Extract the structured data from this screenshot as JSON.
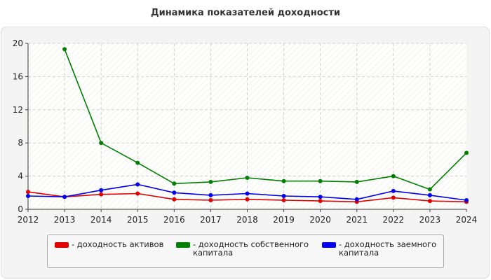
{
  "chart_data": {
    "type": "line",
    "title": "Динамика показателей доходности",
    "xlabel": "",
    "ylabel": "",
    "x": [
      "2012",
      "2013",
      "2014",
      "2015",
      "2016",
      "2017",
      "2018",
      "2019",
      "2020",
      "2021",
      "2022",
      "2023",
      "2024"
    ],
    "ylim": [
      0,
      20
    ],
    "yticks": [
      0,
      4,
      8,
      12,
      16,
      20
    ],
    "grid": true,
    "legend_position": "bottom",
    "series": [
      {
        "name": "- доходность активов",
        "color": "#e00000",
        "values": [
          2.1,
          1.5,
          1.8,
          1.9,
          1.2,
          1.1,
          1.2,
          1.1,
          1.0,
          0.9,
          1.4,
          1.0,
          0.9
        ]
      },
      {
        "name": "- доходность собственного капитала",
        "color": "#008000",
        "values": [
          null,
          19.3,
          8.0,
          5.6,
          3.1,
          3.3,
          3.8,
          3.4,
          3.4,
          3.3,
          4.0,
          2.4,
          6.8
        ]
      },
      {
        "name": "- доходность заемного капитала",
        "color": "#0000ee",
        "values": [
          1.6,
          1.5,
          2.3,
          3.0,
          2.0,
          1.7,
          1.9,
          1.6,
          1.5,
          1.2,
          2.2,
          1.7,
          1.1
        ]
      }
    ]
  }
}
